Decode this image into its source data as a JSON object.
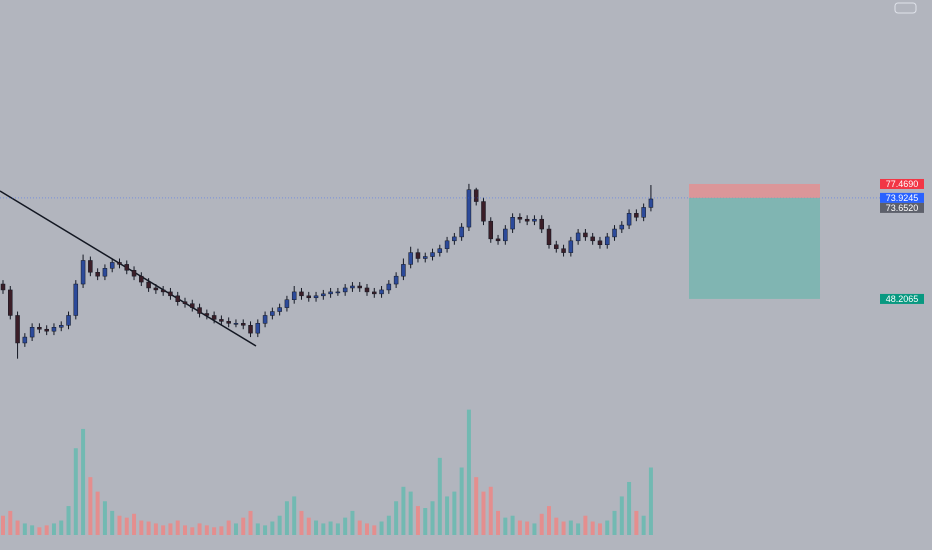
{
  "chart_data": {
    "type": "candlestick",
    "ylim": [
      -15.7,
      124.3
    ],
    "volume_lim": [
      0,
      140
    ],
    "up_color": "#2c4a9a",
    "down_color": "#3b1e28",
    "volume_up_color": "#72b9b2",
    "volume_down_color": "#e48e8e",
    "open": [
      52,
      50.5,
      44,
      37,
      38.5,
      41,
      40.5,
      40,
      41,
      41.5,
      44,
      52,
      58,
      55,
      54,
      56,
      57.5,
      57,
      55.5,
      54,
      52.5,
      51,
      50.5,
      50,
      49,
      47.5,
      47,
      46,
      44.5,
      44,
      43,
      42.5,
      42,
      42,
      41.5,
      39.5,
      42,
      44,
      45,
      46,
      48,
      50,
      49,
      48.5,
      49,
      49.5,
      50,
      50,
      51,
      51.5,
      51,
      50,
      49.5,
      50.5,
      52,
      54,
      57,
      60,
      58.5,
      59,
      60,
      61,
      63,
      64,
      66.5,
      76,
      73,
      68,
      63.5,
      63,
      66,
      69,
      68.5,
      68,
      68.5,
      66,
      62,
      61,
      60,
      63,
      65,
      64,
      63,
      62,
      64,
      66,
      67,
      70,
      69,
      71.5
    ],
    "high": [
      53,
      51.5,
      45,
      39.5,
      42,
      42,
      41.5,
      42,
      42.5,
      45,
      53,
      59.5,
      59,
      56,
      57,
      58.5,
      58.5,
      58,
      56.5,
      55,
      53.5,
      52,
      51.5,
      51,
      50,
      48.5,
      48,
      47,
      45.5,
      45,
      44,
      43.5,
      43,
      43,
      42.5,
      43,
      45,
      46,
      47,
      49,
      51.5,
      51,
      50,
      50,
      50.5,
      51,
      51,
      52,
      52.5,
      52.5,
      52,
      51,
      51.5,
      53,
      55,
      58.5,
      61.5,
      61,
      60,
      61,
      62,
      64,
      65,
      67.5,
      77.5,
      76.5,
      74,
      69,
      64.5,
      67,
      70,
      70,
      69.5,
      69.5,
      69.5,
      67,
      63,
      62,
      64,
      66,
      66,
      65,
      64,
      65,
      67,
      68,
      71,
      71,
      72.5,
      77.2
    ],
    "low": [
      49.5,
      43,
      33,
      36,
      37.5,
      39.5,
      39,
      39,
      40,
      40.5,
      43,
      51,
      54,
      53,
      53,
      55,
      56,
      54.5,
      53,
      51.5,
      50,
      49.5,
      49,
      48,
      46.5,
      46,
      45,
      43.5,
      43,
      42,
      41.5,
      41,
      41,
      40.5,
      38.5,
      38.5,
      41,
      43,
      44,
      45,
      47,
      48,
      47.5,
      47.5,
      48,
      48.5,
      49,
      49,
      50,
      50,
      49,
      48.5,
      48.5,
      49.5,
      51,
      53,
      56,
      57.5,
      57.5,
      58,
      59,
      60,
      62,
      63,
      65.5,
      72,
      67,
      62.5,
      62,
      62,
      65,
      67.5,
      67,
      67,
      65,
      61,
      60,
      59,
      59,
      62,
      63,
      62,
      61,
      61,
      63,
      65,
      66,
      68,
      68,
      70.5
    ],
    "close": [
      50.5,
      44,
      37,
      38.5,
      41,
      40.5,
      40,
      41,
      41.5,
      44,
      52,
      58,
      55,
      54,
      56,
      57.5,
      57,
      55.5,
      54,
      52.5,
      51,
      50.5,
      50,
      49,
      47.5,
      47,
      46,
      44.5,
      44,
      43,
      42.5,
      42,
      42,
      41.5,
      39.5,
      42,
      44,
      45,
      46,
      48,
      50,
      49,
      48.5,
      49,
      49.5,
      50,
      50,
      51,
      51.5,
      51,
      50,
      49.5,
      50.5,
      52,
      54,
      57,
      60,
      58.5,
      59,
      60,
      61,
      63,
      64,
      66.5,
      76,
      73,
      68,
      63.5,
      63,
      66,
      69,
      68.5,
      68,
      68.5,
      66,
      62,
      61,
      60,
      63,
      65,
      64,
      63,
      62,
      64,
      66,
      67,
      70,
      69,
      71.5,
      73.652
    ],
    "volume": [
      20,
      25,
      15,
      12,
      10,
      8,
      10,
      12,
      15,
      30,
      90,
      110,
      60,
      45,
      35,
      25,
      20,
      18,
      22,
      15,
      14,
      12,
      10,
      12,
      15,
      10,
      8,
      12,
      10,
      8,
      9,
      15,
      12,
      18,
      25,
      12,
      10,
      14,
      20,
      35,
      40,
      25,
      18,
      15,
      12,
      14,
      12,
      18,
      25,
      15,
      12,
      10,
      14,
      20,
      35,
      50,
      45,
      30,
      28,
      35,
      80,
      40,
      45,
      70,
      130,
      60,
      45,
      50,
      25,
      18,
      20,
      15,
      14,
      12,
      22,
      30,
      18,
      14,
      15,
      12,
      20,
      14,
      12,
      15,
      25,
      40,
      55,
      25,
      20,
      70
    ],
    "price_labels": [
      {
        "value": 77.469,
        "label": "77.4690",
        "color": "#f23645"
      },
      {
        "value": 73.9245,
        "label": "73.9245",
        "color": "#2962ff"
      },
      {
        "value": 73.652,
        "label": "73.6520",
        "color": "#5d606b"
      },
      {
        "value": 48.2065,
        "label": "48.2065",
        "color": "#089981"
      }
    ]
  }
}
